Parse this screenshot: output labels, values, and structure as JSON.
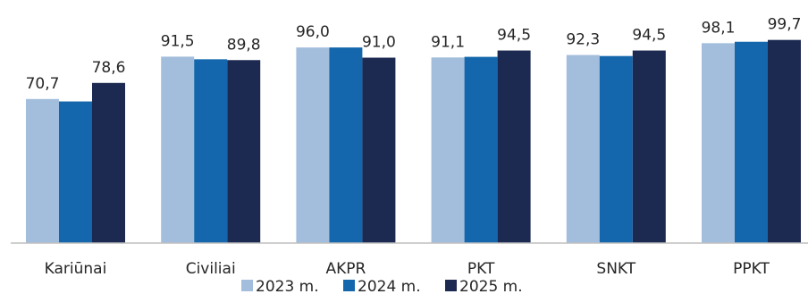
{
  "chart_data": {
    "type": "bar",
    "categories": [
      "Kariūnai",
      "Civiliai",
      "AKPR",
      "PKT",
      "SNKT",
      "PPKT"
    ],
    "series": [
      {
        "name": "2023 m.",
        "color": "#a3bedc",
        "values": [
          70.7,
          91.5,
          96.0,
          91.1,
          92.3,
          98.1
        ]
      },
      {
        "name": "2024 m.",
        "color": "#1467ac",
        "values": [
          69.5,
          90.2,
          96.0,
          91.4,
          91.8,
          98.8
        ]
      },
      {
        "name": "2025 m.",
        "color": "#1c2951",
        "values": [
          78.6,
          89.8,
          91.0,
          94.5,
          94.5,
          99.7
        ]
      }
    ],
    "labels_shown": {
      "2023 m.": [
        "70,7",
        "91,5",
        "96,0",
        "91,1",
        "92,3",
        "98,1"
      ],
      "2025 m.": [
        "78,6",
        "89,8",
        "91,0",
        "94,5",
        "94,5",
        "99,7"
      ]
    },
    "ylim": [
      0,
      110
    ],
    "grid": false,
    "legend_position": "bottom"
  }
}
